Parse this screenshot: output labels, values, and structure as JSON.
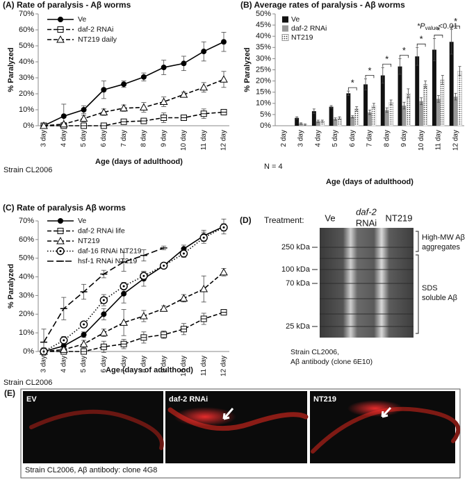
{
  "chart_data": [
    {
      "type": "line",
      "title": "(A) Rate of paralysis - Aβ worms",
      "y_label": "% Paralyzed",
      "x_label": "Age (days of adulthood)",
      "note": "Strain CL2006",
      "categories": [
        "3 day",
        "4 day",
        "5 day",
        "6 day",
        "7 day",
        "8 day",
        "9 day",
        "10 day",
        "11 day",
        "12 day"
      ],
      "ylim": [
        0,
        70
      ],
      "yticks": [
        {
          "value": 0,
          "label": "0%"
        },
        {
          "value": 10,
          "label": "10%"
        },
        {
          "value": 20,
          "label": "20%"
        },
        {
          "value": 30,
          "label": "30%"
        },
        {
          "value": 40,
          "label": "40%"
        },
        {
          "value": 50,
          "label": "50%"
        },
        {
          "value": 60,
          "label": "60%"
        },
        {
          "value": 70,
          "label": "70%"
        }
      ],
      "series": [
        {
          "name": "Ve",
          "color": "#000000",
          "marker": "circle",
          "dash": "solid",
          "values": [
            0,
            6,
            10,
            22.5,
            26,
            30.5,
            36.5,
            39,
            46.5,
            52.5
          ],
          "errors": [
            1,
            7.5,
            2.5,
            5.5,
            2,
            2.5,
            4.5,
            4.5,
            6,
            6
          ]
        },
        {
          "name": "daf-2 RNAi",
          "color": "#000000",
          "marker": "square",
          "dash": "dashed",
          "values": [
            0,
            0,
            0,
            0,
            2.5,
            3,
            5,
            5,
            7.5,
            8.5
          ],
          "errors": [
            0.5,
            0.5,
            0.5,
            1,
            1,
            1.5,
            3,
            1,
            3,
            1.5
          ]
        },
        {
          "name": "NT219 daily",
          "color": "#000000",
          "marker": "triangle",
          "dash": "dashed",
          "values": [
            0,
            1,
            4.5,
            8.5,
            11,
            11.5,
            15,
            19.5,
            24,
            29
          ],
          "errors": [
            1,
            1,
            2,
            2,
            2,
            3,
            3,
            1.5,
            3,
            5
          ]
        }
      ]
    },
    {
      "type": "bar",
      "title": "(B) Average rates of paralysis - Aβ worms",
      "y_label": "% Paralyzed",
      "x_label": "Age (days of adulthood)",
      "note": "N = 4",
      "significance_note": {
        "symbol": "*P",
        "subscript": "value",
        "text": "<0.01"
      },
      "categories": [
        "2 day",
        "3 day",
        "4 day",
        "5 day",
        "6 day",
        "7 day",
        "8 day",
        "9 day",
        "10 day",
        "11 day",
        "12 day"
      ],
      "ylim": [
        0,
        50
      ],
      "yticks": [
        {
          "value": 0,
          "label": "0%"
        },
        {
          "value": 5,
          "label": "5%"
        },
        {
          "value": 10,
          "label": "10%"
        },
        {
          "value": 15,
          "label": "15%"
        },
        {
          "value": 20,
          "label": "20%"
        },
        {
          "value": 25,
          "label": "25%"
        },
        {
          "value": 30,
          "label": "30%"
        },
        {
          "value": 35,
          "label": "35%"
        },
        {
          "value": 40,
          "label": "40%"
        },
        {
          "value": 45,
          "label": "45%"
        },
        {
          "value": 50,
          "label": "50%"
        }
      ],
      "series": [
        {
          "name": "Ve",
          "color": "#111111",
          "values": [
            0,
            3.5,
            6.5,
            8.5,
            14.5,
            18.5,
            22.5,
            26.5,
            31,
            34,
            37.5
          ],
          "errors": [
            0,
            0.5,
            1,
            0.5,
            1,
            2.5,
            3.5,
            3.5,
            4,
            5,
            5.5
          ]
        },
        {
          "name": "daf-2 RNAi",
          "color": "#9a9a9a",
          "values": [
            0,
            1,
            2,
            3,
            4,
            6,
            7,
            9,
            11,
            12,
            13
          ],
          "errors": [
            0,
            0.3,
            0.5,
            0.5,
            0.5,
            1,
            1,
            1.5,
            1.5,
            1.5,
            1.5
          ]
        },
        {
          "name": "NT219",
          "color": "#ffffff",
          "pattern": "dots",
          "values": [
            0,
            0.5,
            2,
            3.5,
            7.5,
            9,
            10.5,
            14.5,
            18.5,
            20.5,
            24.5
          ],
          "errors": [
            0,
            0.3,
            0.5,
            0.5,
            1,
            1,
            1,
            2,
            1.5,
            2,
            2
          ]
        }
      ],
      "annotations": [
        {
          "category": "6 day",
          "text": "*"
        },
        {
          "category": "7 day",
          "text": "*"
        },
        {
          "category": "8 day",
          "text": "*"
        },
        {
          "category": "9 day",
          "text": "*"
        },
        {
          "category": "10 day",
          "text": "*"
        },
        {
          "category": "11 day",
          "text": "*"
        },
        {
          "category": "12 day",
          "text": "*"
        }
      ]
    },
    {
      "type": "line",
      "title": "(C) Rate of paralysis Aβ worms",
      "y_label": "% Paralyzed",
      "x_label": "Age (days of adulthood)",
      "note": "Strain CL2006",
      "categories": [
        "3 day",
        "4 day",
        "5 day",
        "6 day",
        "7 day",
        "8 day",
        "9 day",
        "10 day",
        "11 day",
        "12 day"
      ],
      "ylim": [
        0,
        70
      ],
      "yticks": [
        {
          "value": 0,
          "label": "0%"
        },
        {
          "value": 10,
          "label": "10%"
        },
        {
          "value": 20,
          "label": "20%"
        },
        {
          "value": 30,
          "label": "30%"
        },
        {
          "value": 40,
          "label": "40%"
        },
        {
          "value": 50,
          "label": "50%"
        },
        {
          "value": 60,
          "label": "60%"
        },
        {
          "value": 70,
          "label": "70%"
        }
      ],
      "series": [
        {
          "name": "Ve",
          "color": "#000000",
          "marker": "circle",
          "dash": "solid",
          "values": [
            0,
            3,
            9,
            20,
            31,
            39,
            46,
            55,
            62,
            67
          ],
          "errors": [
            1,
            2,
            1.5,
            3,
            5,
            4,
            1.5,
            2,
            3,
            4
          ]
        },
        {
          "name": "daf-2 RNAi life",
          "color": "#000000",
          "marker": "square",
          "dash": "dashed",
          "values": [
            0,
            0,
            0,
            2.5,
            4,
            7.5,
            9,
            12,
            17.5,
            21
          ],
          "errors": [
            0.5,
            0.5,
            1,
            3,
            2.5,
            3,
            2,
            3,
            3,
            1.5
          ]
        },
        {
          "name": "NT219",
          "color": "#000000",
          "marker": "triangle",
          "dash": "dashed",
          "values": [
            0,
            1,
            4,
            10,
            15.5,
            19,
            23,
            28.5,
            33.5,
            42.5
          ],
          "errors": [
            2,
            1,
            2,
            2,
            7,
            3,
            1.5,
            2,
            7,
            2
          ]
        },
        {
          "name": "daf-16 RNAi  NT219",
          "color": "#000000",
          "marker": "circle-dot",
          "dash": "dotted",
          "values": [
            0,
            6,
            14.5,
            27.5,
            35,
            40.5,
            46,
            52.5,
            61,
            66.5
          ],
          "errors": [
            1,
            2,
            1.5,
            3,
            2,
            2,
            1,
            2,
            3,
            2
          ]
        },
        {
          "name": "hsf-1 RNAi NT219",
          "color": "#000000",
          "marker": "dash",
          "dash": "longdash",
          "values": [
            5,
            23,
            32,
            41.5,
            48,
            51.5,
            55.5,
            null,
            null,
            null
          ],
          "errors": [
            7,
            6,
            4,
            2,
            5,
            3,
            1,
            null,
            null,
            null
          ]
        }
      ]
    }
  ],
  "blot": {
    "panel": "(D)",
    "treatment": "Treatment:",
    "lanes": [
      [
        "Ve"
      ],
      [
        "daf-2",
        "RNAi"
      ],
      [
        "NT219"
      ]
    ],
    "markers": [
      "250 kDa",
      "100 kDa",
      "70 kDa",
      "25 kDa"
    ],
    "brackets": [
      [
        "High-MW Aβ",
        "aggregates"
      ],
      [
        "SDS",
        "soluble Aβ"
      ]
    ],
    "caption": [
      "Strain CL2006,",
      "Aβ antibody (clone 6E10)"
    ]
  },
  "images": {
    "panel": "(E)",
    "labels": [
      "EV",
      "daf-2 RNAi",
      "NT219"
    ],
    "caption": "Strain CL2006, Aβ antibody: clone 4G8"
  }
}
